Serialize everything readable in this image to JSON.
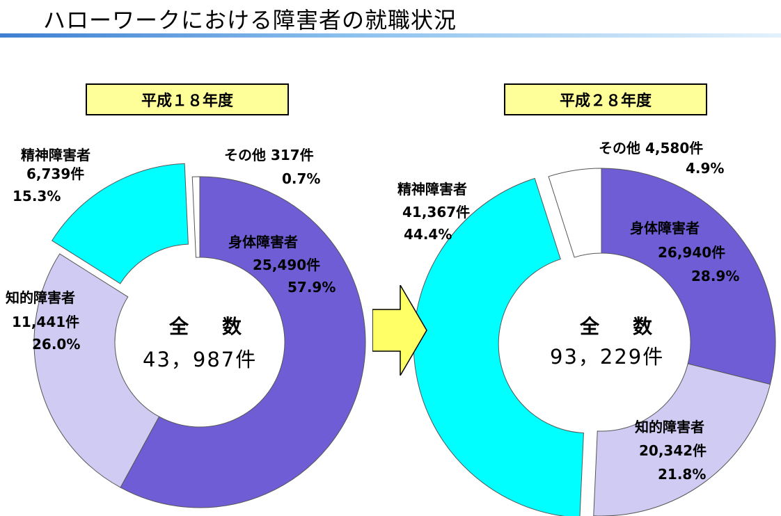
{
  "title": "ハローワークにおける障害者の就職状況",
  "colors": {
    "body": "#6f5dd6",
    "intellectual": "#d0cbf2",
    "mental": "#00ffff",
    "other": "#ffffff",
    "year_box": "#ffff99",
    "arrow": "#ffff66",
    "title_rule": "#3e7fd1"
  },
  "arrow_icon": "right-arrow",
  "chart_data": [
    {
      "type": "pie",
      "style": "donut",
      "year_label": "平成１８年度",
      "center_caption": "全　数",
      "center_total": "43，987件",
      "slices": [
        {
          "category": "身体障害者",
          "count": 25490,
          "count_label": "25,490件",
          "percent": 57.9,
          "percent_label": "57.9%",
          "color": "#6f5dd6"
        },
        {
          "category": "知的障害者",
          "count": 11441,
          "count_label": "11,441件",
          "percent": 26.0,
          "percent_label": "26.0%",
          "color": "#d0cbf2"
        },
        {
          "category": "精神障害者",
          "count": 6739,
          "count_label": "6,739件",
          "percent": 15.3,
          "percent_label": "15.3%",
          "color": "#00ffff",
          "exploded": true
        },
        {
          "category": "その他",
          "count": 317,
          "count_label": "317件",
          "percent": 0.7,
          "percent_label": "0.7%",
          "color": "#ffffff"
        }
      ]
    },
    {
      "type": "pie",
      "style": "donut",
      "year_label": "平成２８年度",
      "center_caption": "全　数",
      "center_total": "93，229件",
      "slices": [
        {
          "category": "身体障害者",
          "count": 26940,
          "count_label": "26,940件",
          "percent": 28.9,
          "percent_label": "28.9%",
          "color": "#6f5dd6"
        },
        {
          "category": "知的障害者",
          "count": 20342,
          "count_label": "20,342件",
          "percent": 21.8,
          "percent_label": "21.8%",
          "color": "#d0cbf2"
        },
        {
          "category": "精神障害者",
          "count": 41367,
          "count_label": "41,367件",
          "percent": 44.4,
          "percent_label": "44.4%",
          "color": "#00ffff",
          "exploded": true
        },
        {
          "category": "その他",
          "count": 4580,
          "count_label": "4,580件",
          "percent": 4.9,
          "percent_label": "4.9%",
          "color": "#ffffff"
        }
      ]
    }
  ]
}
